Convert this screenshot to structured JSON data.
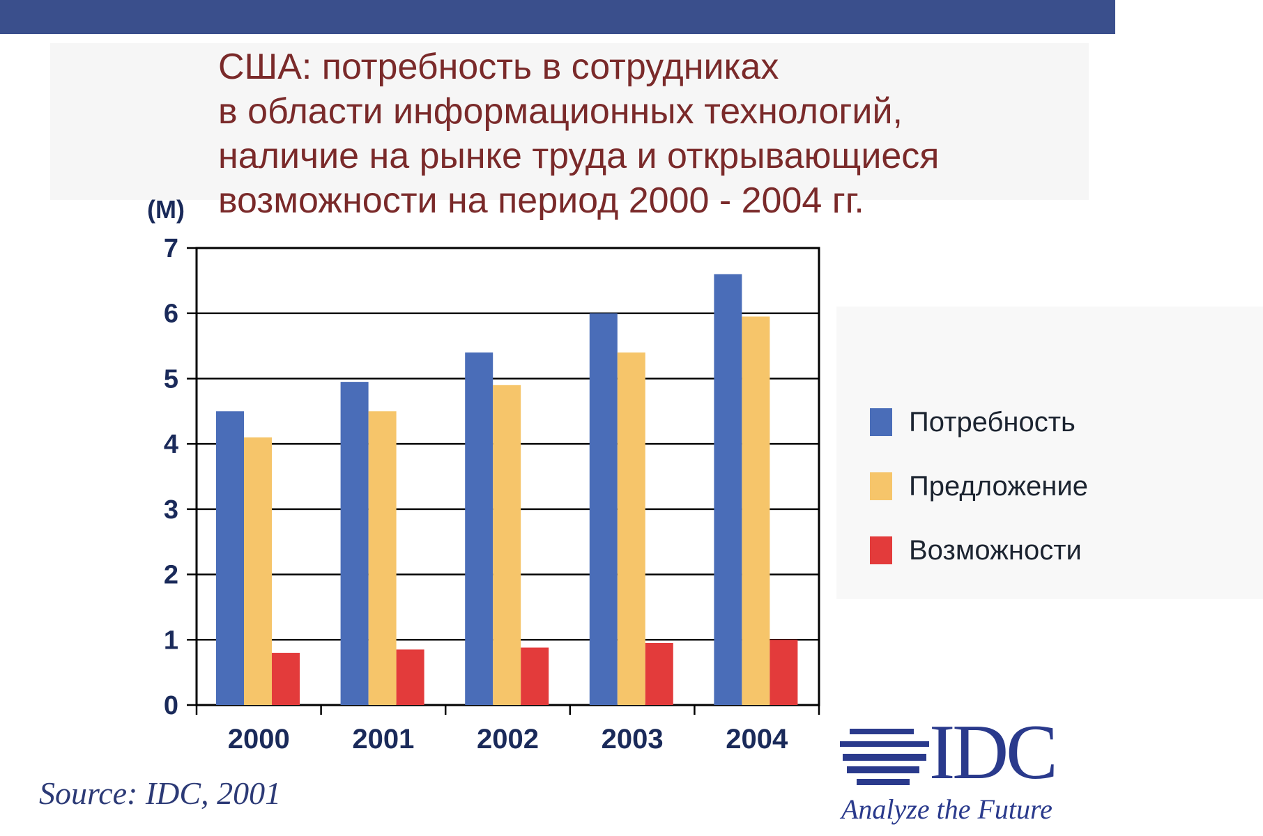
{
  "header": {
    "title_lines": [
      "США: потребность в сотрудниках",
      "в области информационных технологий,",
      "наличие на рынке труда и открывающиеся",
      "возможности на период 2000 - 2004 гг."
    ]
  },
  "chart_data": {
    "type": "bar",
    "title": "США: потребность в сотрудниках в области информационных технологий, наличие на рынке труда и открывающиеся возможности на период 2000 - 2004 гг.",
    "ylabel": "(M)",
    "xlabel": "",
    "categories": [
      "2000",
      "2001",
      "2002",
      "2003",
      "2004"
    ],
    "series": [
      {
        "name": "Потребность",
        "color": "#4a6db8",
        "values": [
          4.5,
          4.95,
          5.4,
          6.0,
          6.6
        ]
      },
      {
        "name": "Предложение",
        "color": "#f6c56a",
        "values": [
          4.1,
          4.5,
          4.9,
          5.4,
          5.95
        ]
      },
      {
        "name": "Возможности",
        "color": "#e33b3b",
        "values": [
          0.8,
          0.85,
          0.88,
          0.95,
          1.0
        ]
      }
    ],
    "ylim": [
      0,
      7
    ],
    "yticks": [
      "0",
      "1",
      "2",
      "3",
      "4",
      "5",
      "6",
      "7"
    ],
    "grid": true,
    "legend_position": "right"
  },
  "footer": {
    "source": "Source: IDC, 2001",
    "logo_text": "IDC",
    "logo_tagline": "Analyze the Future"
  },
  "colors": {
    "top_bar": "#3a4f8c",
    "title_text": "#7a2a2a",
    "axis_text": "#1a2a5a",
    "grid": "#000000"
  }
}
